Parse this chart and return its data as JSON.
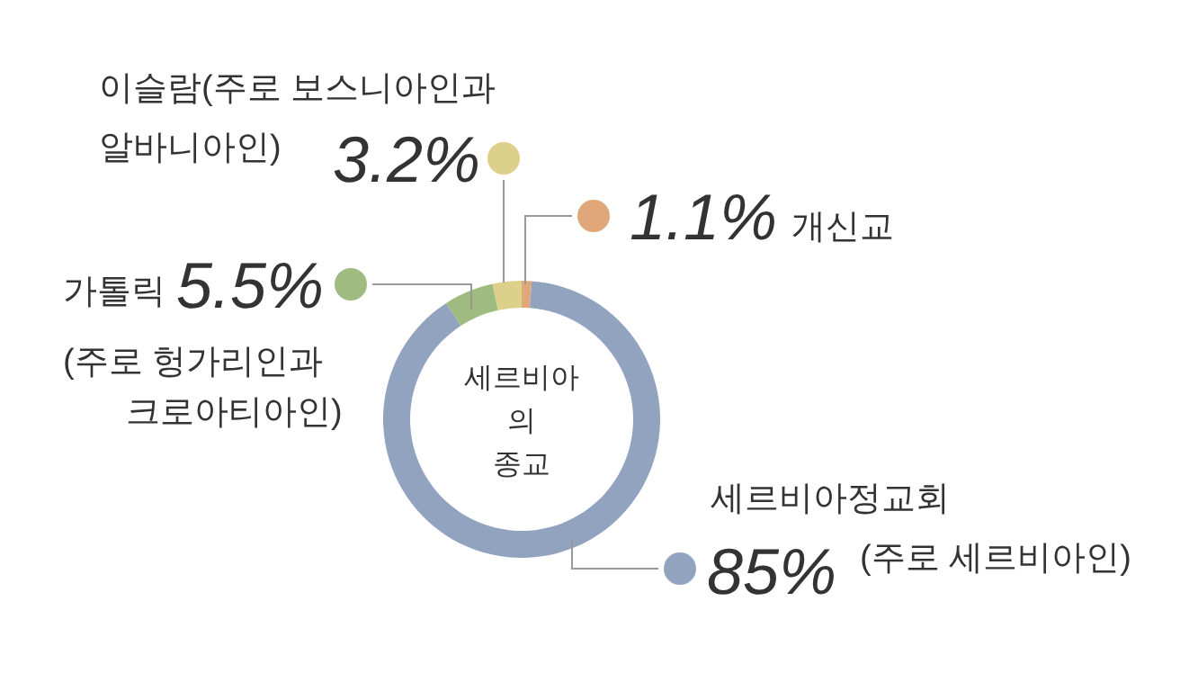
{
  "chart_data": {
    "type": "donut",
    "title": "세르비아\n의\n종교",
    "categories": [
      "개신교",
      "세르비아정교회",
      "가톨릭",
      "이슬람"
    ],
    "values": [
      1.1,
      85,
      5.5,
      3.2
    ],
    "colors": [
      "#e0a87a",
      "#91a3bf",
      "#9fbb7f",
      "#ddd08a"
    ],
    "value_labels": [
      "1.1%",
      "85%",
      "5.5%",
      "3.2%"
    ],
    "annotations": [
      "(주로 세르비아인)",
      "(주로 헝가리인과 크로아티아인)",
      "(주로 보스니아인과 알바니아인)"
    ],
    "legend": false
  }
}
